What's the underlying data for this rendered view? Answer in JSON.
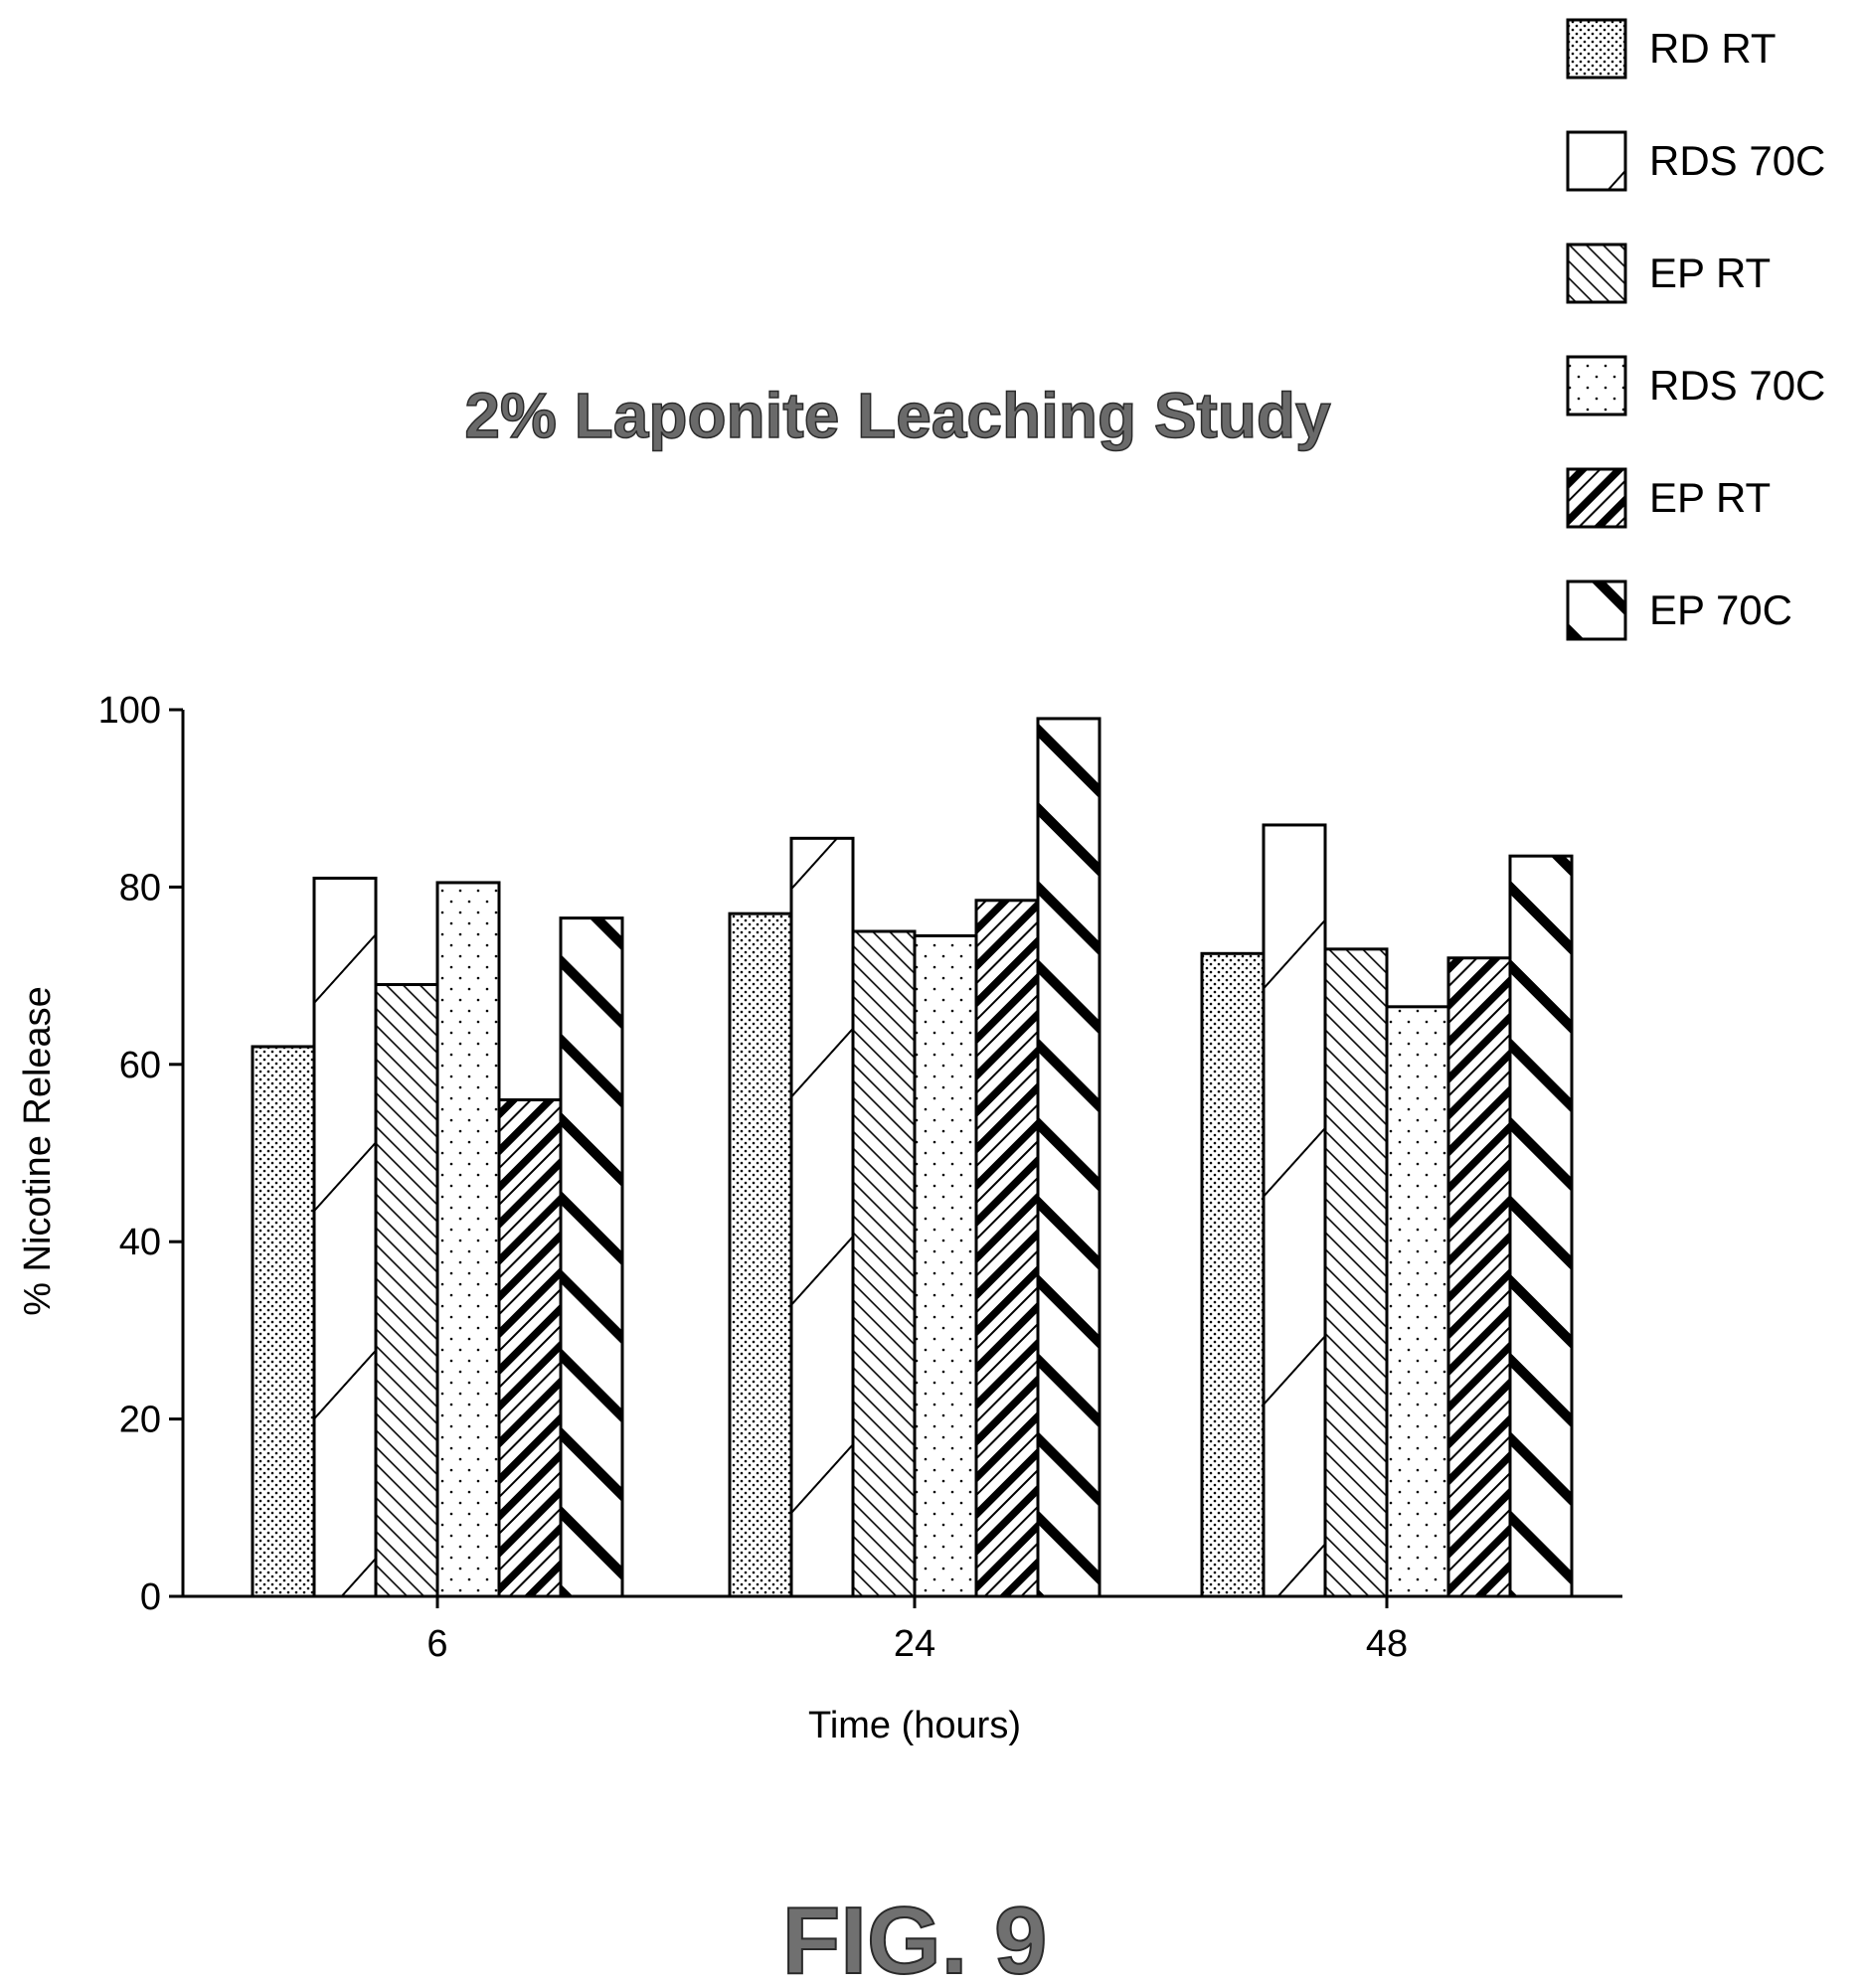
{
  "figure_label": "FIG. 9",
  "chart_data": {
    "type": "bar",
    "title": "2% Laponite Leaching Study",
    "xlabel": "Time (hours)",
    "ylabel": "% Nicotine Release",
    "categories": [
      "6",
      "24",
      "48"
    ],
    "ylim": [
      0,
      100
    ],
    "yticks": [
      0,
      20,
      40,
      60,
      80,
      100
    ],
    "grid": false,
    "legend_position": "top-right",
    "series": [
      {
        "name": "RD RT",
        "pattern": "dense-dots",
        "values": [
          62,
          77,
          72.5
        ]
      },
      {
        "name": "RDS 70C",
        "pattern": "thin-forward-slash",
        "values": [
          81,
          85.5,
          87
        ]
      },
      {
        "name": "EP RT",
        "pattern": "thin-back-slash",
        "values": [
          69,
          75,
          73
        ]
      },
      {
        "name": "RDS 70C",
        "pattern": "sparse-dots",
        "values": [
          80.5,
          74.5,
          66.5
        ]
      },
      {
        "name": "EP RT",
        "pattern": "thick-forward-slash",
        "values": [
          56,
          78.5,
          72
        ]
      },
      {
        "name": "EP 70C",
        "pattern": "thick-back-slash",
        "values": [
          76.5,
          99,
          83.5
        ]
      }
    ]
  }
}
